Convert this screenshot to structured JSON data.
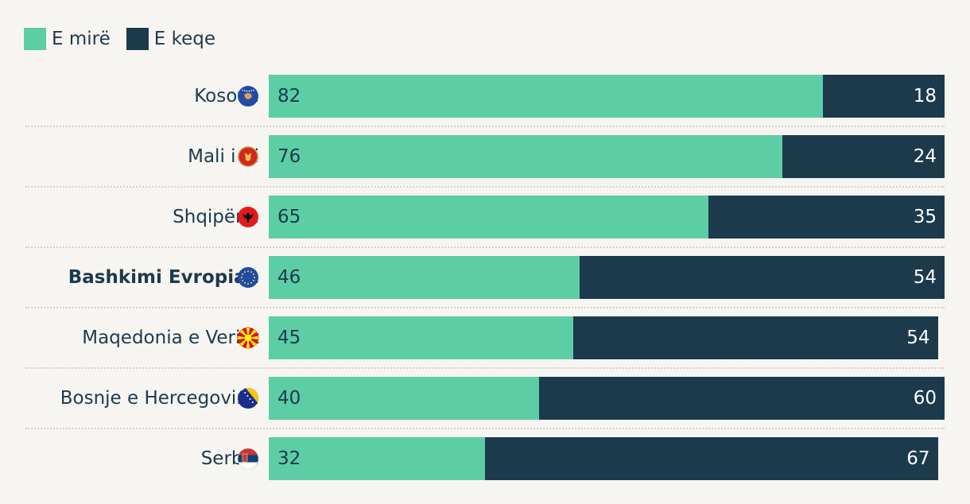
{
  "legend": [
    {
      "label": "E mirë",
      "color": "#5ccda5"
    },
    {
      "label": "E keqe",
      "color": "#1c3a4c"
    }
  ],
  "chart_data": {
    "type": "bar",
    "orientation": "horizontal",
    "stacked": true,
    "categories": [
      "Kosova",
      "Mali i Zi",
      "Shqipëria",
      "Bashkimi Evropian",
      "Maqedonia e Veriut",
      "Bosnje e Hercegovina",
      "Serbia"
    ],
    "highlighted_category": "Bashkimi Evropian",
    "flag_icons": [
      "kosovo-flag-icon",
      "montenegro-flag-icon",
      "albania-flag-icon",
      "eu-flag-icon",
      "north-macedonia-flag-icon",
      "bosnia-flag-icon",
      "serbia-flag-icon"
    ],
    "series": [
      {
        "name": "E mirë",
        "color": "#5ccda5",
        "values": [
          82,
          76,
          65,
          46,
          45,
          40,
          32
        ]
      },
      {
        "name": "E keqe",
        "color": "#1c3a4c",
        "values": [
          18,
          24,
          35,
          54,
          54,
          60,
          67
        ]
      }
    ],
    "xlim": [
      0,
      100
    ],
    "legend_position": "top-left",
    "grid": false
  }
}
